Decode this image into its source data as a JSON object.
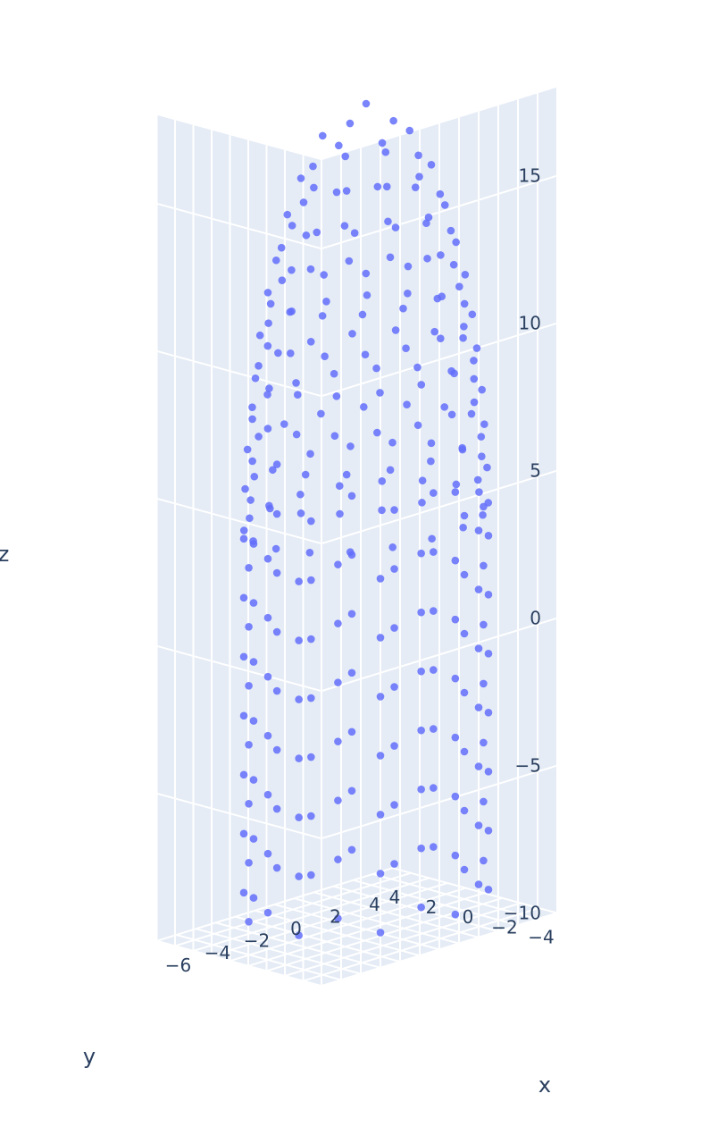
{
  "chart_data": {
    "type": "scatter",
    "mode": "3d",
    "marker_color": "#636efa",
    "background_color": "#e5ecf6",
    "grid_color": "#ffffff",
    "text_color": "#2a3f5f",
    "axes": {
      "x": {
        "title": "x",
        "range": [
          -6,
          6
        ],
        "ticks": [
          {
            "v": -6,
            "label": "−6"
          },
          {
            "v": -4,
            "label": "−4"
          },
          {
            "v": -2,
            "label": "−2"
          },
          {
            "v": 0,
            "label": "0"
          },
          {
            "v": 2,
            "label": "2"
          },
          {
            "v": 4,
            "label": "4"
          }
        ]
      },
      "y": {
        "title": "y",
        "range": [
          -4,
          5
        ],
        "ticks": [
          {
            "v": -4,
            "label": "−4"
          },
          {
            "v": -2,
            "label": "−2"
          },
          {
            "v": 0,
            "label": "0"
          },
          {
            "v": 2,
            "label": "2"
          },
          {
            "v": 4,
            "label": "4"
          }
        ]
      },
      "z": {
        "title": "z",
        "range": [
          -10,
          18
        ],
        "ticks": [
          {
            "v": -10,
            "label": "−10"
          },
          {
            "v": -5,
            "label": "−5"
          },
          {
            "v": 0,
            "label": "0"
          },
          {
            "v": 5,
            "label": "5"
          },
          {
            "v": 10,
            "label": "10"
          },
          {
            "v": 15,
            "label": "15"
          }
        ]
      }
    },
    "surface_description": "points on a sphere-capped column/dome shape: x in [-5,5], y in [-4,4], z from about -10 to 18",
    "points": []
  }
}
